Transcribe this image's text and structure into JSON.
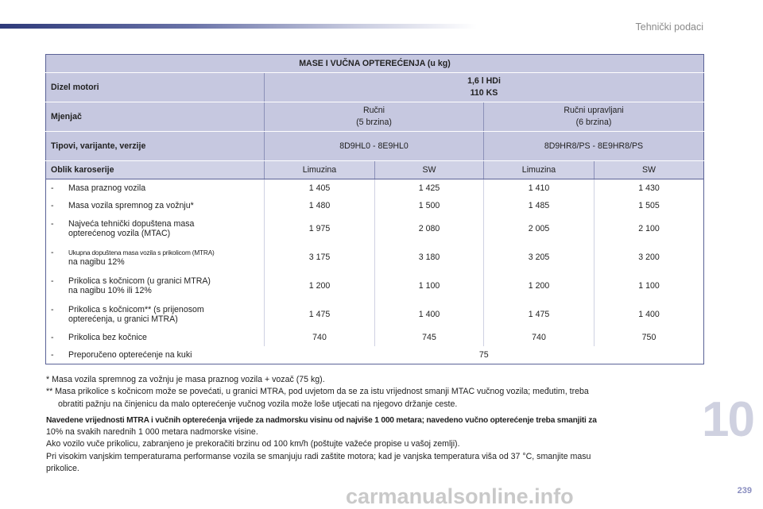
{
  "header": {
    "title": "Tehnički podaci"
  },
  "table": {
    "title": "MASE I VUČNA OPTEREĆENJA (u kg)",
    "engine": {
      "label": "Dizel motori",
      "line1": "1,6 l HDi",
      "line2": "110 KS"
    },
    "gearbox": {
      "label": "Mjenjač",
      "manual": {
        "line1": "Ručni",
        "line2": "(5 brzina)"
      },
      "robot": {
        "line1": "Ručni upravljani",
        "line2": "(6 brzina)"
      }
    },
    "types": {
      "label": "Tipovi, varijante, verzije",
      "manual": "8D9HL0 - 8E9HL0",
      "robot": "8D9HR8/PS - 8E9HR8/PS"
    },
    "body": {
      "label": "Oblik karoserije",
      "cols": [
        "Limuzina",
        "SW",
        "Limuzina",
        "SW"
      ]
    },
    "rows": [
      {
        "line1": "Masa praznog vozila",
        "line2": "",
        "values": [
          "1 405",
          "1 425",
          "1 410",
          "1 430"
        ]
      },
      {
        "line1": "Masa vozila spremnog za vožnju*",
        "line2": "",
        "values": [
          "1 480",
          "1 500",
          "1 485",
          "1 505"
        ]
      },
      {
        "line1": "Najveća tehnički dopuštena masa",
        "line2": "opterećenog vozila (MTAC)",
        "values": [
          "1 975",
          "2 080",
          "2 005",
          "2 100"
        ]
      },
      {
        "line1": "Ukupna dopuštena masa vozila s prikolicom (MTRA)",
        "line2": "na nagibu 12%",
        "values": [
          "3 175",
          "3 180",
          "3 205",
          "3 200"
        ]
      },
      {
        "line1": "Prikolica s kočnicom (u granici MTRA)",
        "line2": "na nagibu 10% ili 12%",
        "values": [
          "1 200",
          "1 100",
          "1 200",
          "1 100"
        ]
      },
      {
        "line1": "Prikolica s kočnicom** (s prijenosom",
        "line2": "opterećenja, u granici MTRA)",
        "values": [
          "1 475",
          "1 400",
          "1 475",
          "1 400"
        ]
      },
      {
        "line1": "Prikolica bez kočnice",
        "line2": "",
        "values": [
          "740",
          "745",
          "740",
          "750"
        ]
      }
    ],
    "last_row": {
      "label": "Preporučeno opterećenje na kuki",
      "value": "75"
    },
    "dash": "-"
  },
  "notes": {
    "n1": "* Masa vozila spremnog za vožnju je masa praznog vozila + vozač (75 kg).",
    "n2a": "** Masa prikolice s kočnicom može se povećati, u granici MTRA, pod uvjetom da se za istu vrijednost smanji MTAC vučnog vozila; međutim, treba",
    "n2b": "obratiti pažnju na činjenicu da malo opterećenje vučnog vozila može loše utjecati na njegovo držanje ceste.",
    "bold": "Navedene vrijednosti MTRA i vučnih opterećenja vrijede za nadmorsku visinu od najviše 1 000 metara; navedeno vučno opterećenje treba smanjiti za",
    "p1": "10% na svakih narednih 1 000 metara nadmorske visine.",
    "p2": "Ako vozilo vuče prikolicu, zabranjeno je prekoračiti brzinu od 100 km/h (poštujte važeće propise u vašoj zemlji).",
    "p3": "Pri visokim vanjskim temperaturama performanse vozila se smanjuju radi zaštite motora; kad je vanjska temperatura viša od 37 °C, smanjite masu",
    "p4": "prikolice."
  },
  "chapter": "10",
  "page_number": "239",
  "watermark": "carmanualsonline.info"
}
